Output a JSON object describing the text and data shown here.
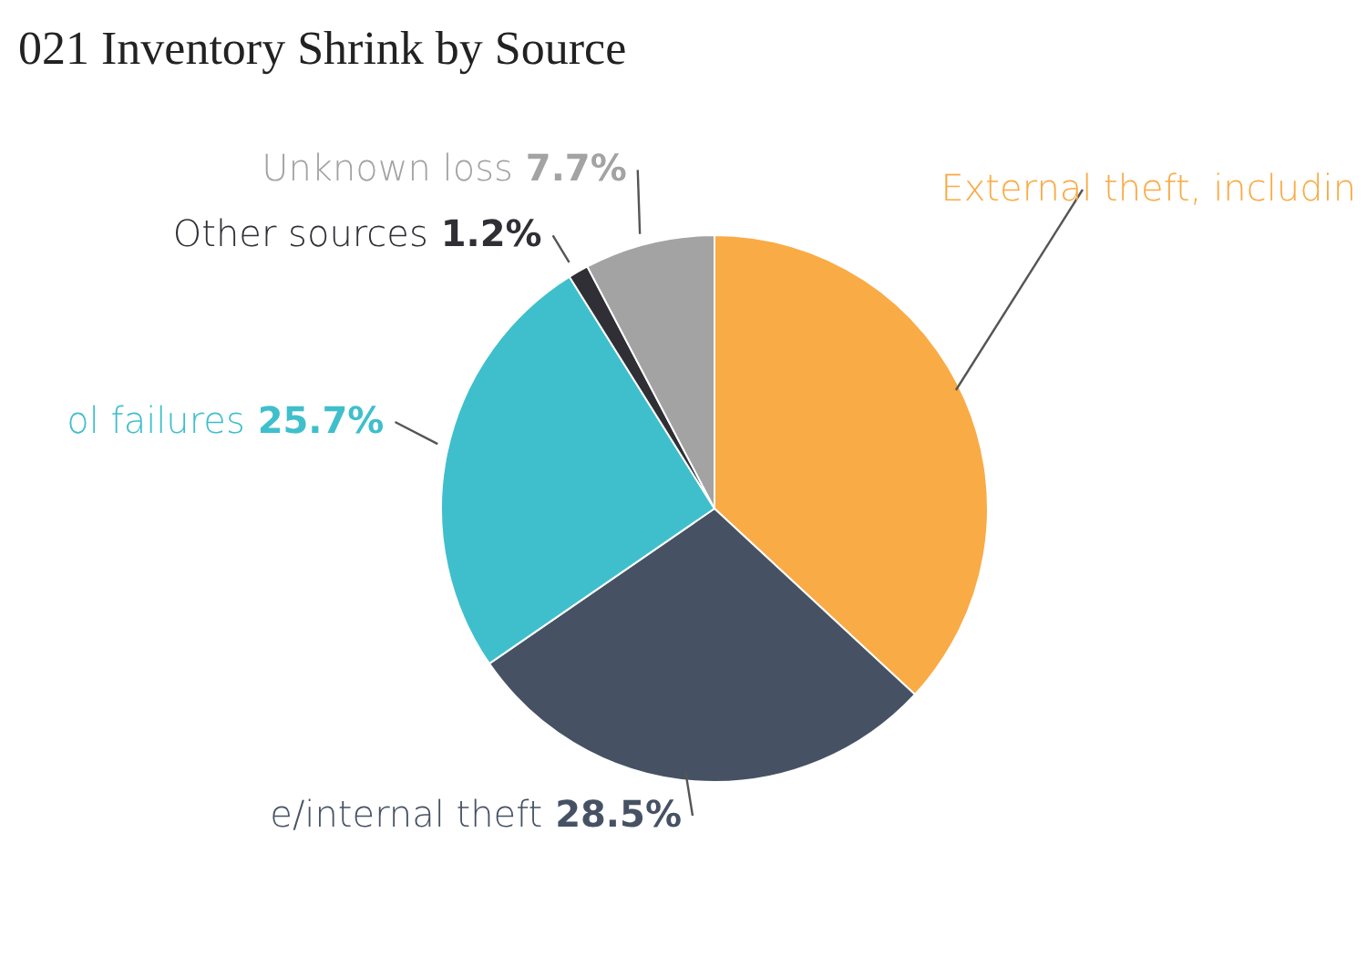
{
  "chart_data": {
    "type": "pie",
    "title": "021 Inventory Shrink by Source",
    "categories": [
      "External theft, includin",
      "e/internal theft",
      "ol failures",
      "Other sources",
      "Unknown loss"
    ],
    "values": [
      36.9,
      28.5,
      25.7,
      1.2,
      7.7
    ],
    "value_labels": [
      null,
      "28.5%",
      "25.7%",
      "1.2%",
      "7.7%"
    ],
    "colors": [
      "#f9ab45",
      "#465264",
      "#3fbfcc",
      "#2f2f35",
      "#a3a3a3"
    ],
    "legend": false
  }
}
